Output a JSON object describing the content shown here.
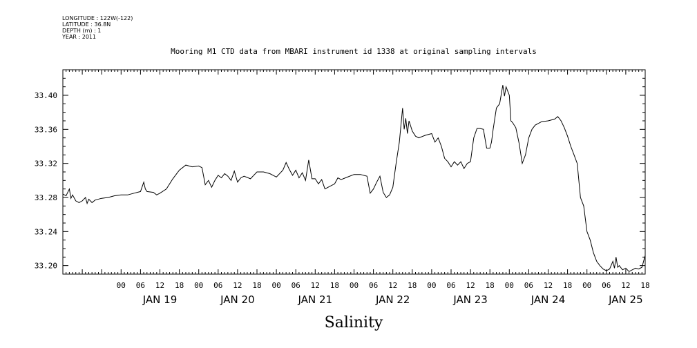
{
  "metadata": {
    "longitude": "LONGITUDE : 122W(-122)",
    "latitude": "LATITUDE : 36.8N",
    "depth": "DEPTH (m) : 1",
    "year": "YEAR : 2011"
  },
  "chart_data": {
    "type": "line",
    "title": "Mooring M1 CTD data from MBARI instrument id 1338 at original sampling intervals",
    "xlabel": "Salinity",
    "ylabel": "",
    "x_unit": "hours since JAN 19 00",
    "xlim": [
      -18,
      162
    ],
    "ylim": [
      33.19,
      33.43
    ],
    "yticks": [
      "33.20",
      "33.24",
      "33.28",
      "33.32",
      "33.36",
      "33.40"
    ],
    "hour_ticks": [
      "00",
      "06",
      "12",
      "18",
      "00",
      "06",
      "12",
      "18",
      "00",
      "06",
      "12",
      "18",
      "00",
      "06",
      "12",
      "18",
      "00",
      "06",
      "12",
      "18",
      "00",
      "06",
      "12",
      "18",
      "00",
      "06",
      "12",
      "18"
    ],
    "day_labels": [
      "JAN 19",
      "JAN 20",
      "JAN 21",
      "JAN 22",
      "JAN 23",
      "JAN 24",
      "JAN 25"
    ],
    "line_color": "#000000",
    "series": [
      {
        "values": [
          [
            -18,
            33.284
          ],
          [
            -17,
            33.282
          ],
          [
            -16,
            33.29
          ],
          [
            -15.5,
            33.279
          ],
          [
            -15,
            33.283
          ],
          [
            -14,
            33.276
          ],
          [
            -13,
            33.274
          ],
          [
            -12,
            33.276
          ],
          [
            -11,
            33.28
          ],
          [
            -10.5,
            33.273
          ],
          [
            -10,
            33.278
          ],
          [
            -9,
            33.274
          ],
          [
            -8,
            33.277
          ],
          [
            -6,
            33.279
          ],
          [
            -4,
            33.28
          ],
          [
            -2,
            33.282
          ],
          [
            0,
            33.283
          ],
          [
            2,
            33.283
          ],
          [
            4,
            33.285
          ],
          [
            6,
            33.287
          ],
          [
            7,
            33.298
          ],
          [
            7.5,
            33.29
          ],
          [
            8,
            33.287
          ],
          [
            10,
            33.286
          ],
          [
            11,
            33.283
          ],
          [
            12,
            33.285
          ],
          [
            14,
            33.29
          ],
          [
            16,
            33.302
          ],
          [
            18,
            33.312
          ],
          [
            20,
            33.318
          ],
          [
            22,
            33.316
          ],
          [
            24,
            33.317
          ],
          [
            25,
            33.315
          ],
          [
            26,
            33.295
          ],
          [
            27,
            33.3
          ],
          [
            28,
            33.292
          ],
          [
            29,
            33.3
          ],
          [
            30,
            33.306
          ],
          [
            31,
            33.303
          ],
          [
            32,
            33.308
          ],
          [
            33,
            33.305
          ],
          [
            34,
            33.3
          ],
          [
            35,
            33.311
          ],
          [
            36,
            33.298
          ],
          [
            37,
            33.303
          ],
          [
            38,
            33.305
          ],
          [
            40,
            33.302
          ],
          [
            42,
            33.31
          ],
          [
            44,
            33.31
          ],
          [
            46,
            33.308
          ],
          [
            48,
            33.304
          ],
          [
            50,
            33.312
          ],
          [
            51,
            33.321
          ],
          [
            52,
            33.313
          ],
          [
            53,
            33.306
          ],
          [
            54,
            33.312
          ],
          [
            55,
            33.303
          ],
          [
            56,
            33.309
          ],
          [
            57,
            33.3
          ],
          [
            58,
            33.324
          ],
          [
            59,
            33.302
          ],
          [
            60,
            33.302
          ],
          [
            61,
            33.296
          ],
          [
            62,
            33.301
          ],
          [
            63,
            33.29
          ],
          [
            64,
            33.292
          ],
          [
            66,
            33.296
          ],
          [
            67,
            33.303
          ],
          [
            68,
            33.301
          ],
          [
            70,
            33.304
          ],
          [
            72,
            33.307
          ],
          [
            74,
            33.307
          ],
          [
            76,
            33.305
          ],
          [
            77,
            33.285
          ],
          [
            78,
            33.29
          ],
          [
            79,
            33.298
          ],
          [
            80,
            33.305
          ],
          [
            81,
            33.286
          ],
          [
            82,
            33.28
          ],
          [
            83,
            33.283
          ],
          [
            84,
            33.292
          ],
          [
            85,
            33.32
          ],
          [
            86,
            33.345
          ],
          [
            87,
            33.385
          ],
          [
            87.5,
            33.36
          ],
          [
            88,
            33.373
          ],
          [
            88.5,
            33.355
          ],
          [
            89,
            33.37
          ],
          [
            90,
            33.358
          ],
          [
            91,
            33.352
          ],
          [
            92,
            33.35
          ],
          [
            94,
            33.353
          ],
          [
            96,
            33.355
          ],
          [
            97,
            33.345
          ],
          [
            98,
            33.35
          ],
          [
            99,
            33.34
          ],
          [
            100,
            33.326
          ],
          [
            101,
            33.322
          ],
          [
            102,
            33.316
          ],
          [
            103,
            33.322
          ],
          [
            104,
            33.318
          ],
          [
            105,
            33.322
          ],
          [
            106,
            33.314
          ],
          [
            107,
            33.32
          ],
          [
            108,
            33.322
          ],
          [
            109,
            33.35
          ],
          [
            110,
            33.361
          ],
          [
            111,
            33.361
          ],
          [
            112,
            33.36
          ],
          [
            113,
            33.338
          ],
          [
            114,
            33.338
          ],
          [
            114.5,
            33.345
          ],
          [
            115,
            33.36
          ],
          [
            116,
            33.385
          ],
          [
            117,
            33.39
          ],
          [
            118,
            33.412
          ],
          [
            118.5,
            33.399
          ],
          [
            119,
            33.41
          ],
          [
            120,
            33.4
          ],
          [
            120.5,
            33.37
          ],
          [
            121,
            33.368
          ],
          [
            122,
            33.362
          ],
          [
            123,
            33.344
          ],
          [
            124,
            33.32
          ],
          [
            125,
            33.33
          ],
          [
            126,
            33.35
          ],
          [
            127,
            33.36
          ],
          [
            128,
            33.365
          ],
          [
            130,
            33.369
          ],
          [
            132,
            33.37
          ],
          [
            134,
            33.372
          ],
          [
            135,
            33.375
          ],
          [
            136,
            33.37
          ],
          [
            137,
            33.362
          ],
          [
            138,
            33.352
          ],
          [
            139,
            33.34
          ],
          [
            140,
            33.33
          ],
          [
            141,
            33.32
          ],
          [
            142,
            33.28
          ],
          [
            143,
            33.27
          ],
          [
            144,
            33.24
          ],
          [
            145,
            33.23
          ],
          [
            146,
            33.215
          ],
          [
            147,
            33.205
          ],
          [
            148,
            33.2
          ],
          [
            149,
            33.196
          ],
          [
            150,
            33.194
          ],
          [
            151,
            33.196
          ],
          [
            152,
            33.205
          ],
          [
            152.5,
            33.197
          ],
          [
            153,
            33.21
          ],
          [
            153.5,
            33.198
          ],
          [
            154,
            33.2
          ],
          [
            155,
            33.195
          ],
          [
            156,
            33.197
          ],
          [
            157,
            33.193
          ],
          [
            158,
            33.195
          ],
          [
            159,
            33.197
          ],
          [
            160,
            33.196
          ],
          [
            161,
            33.198
          ],
          [
            162,
            33.212
          ]
        ]
      }
    ],
    "grid": false
  }
}
